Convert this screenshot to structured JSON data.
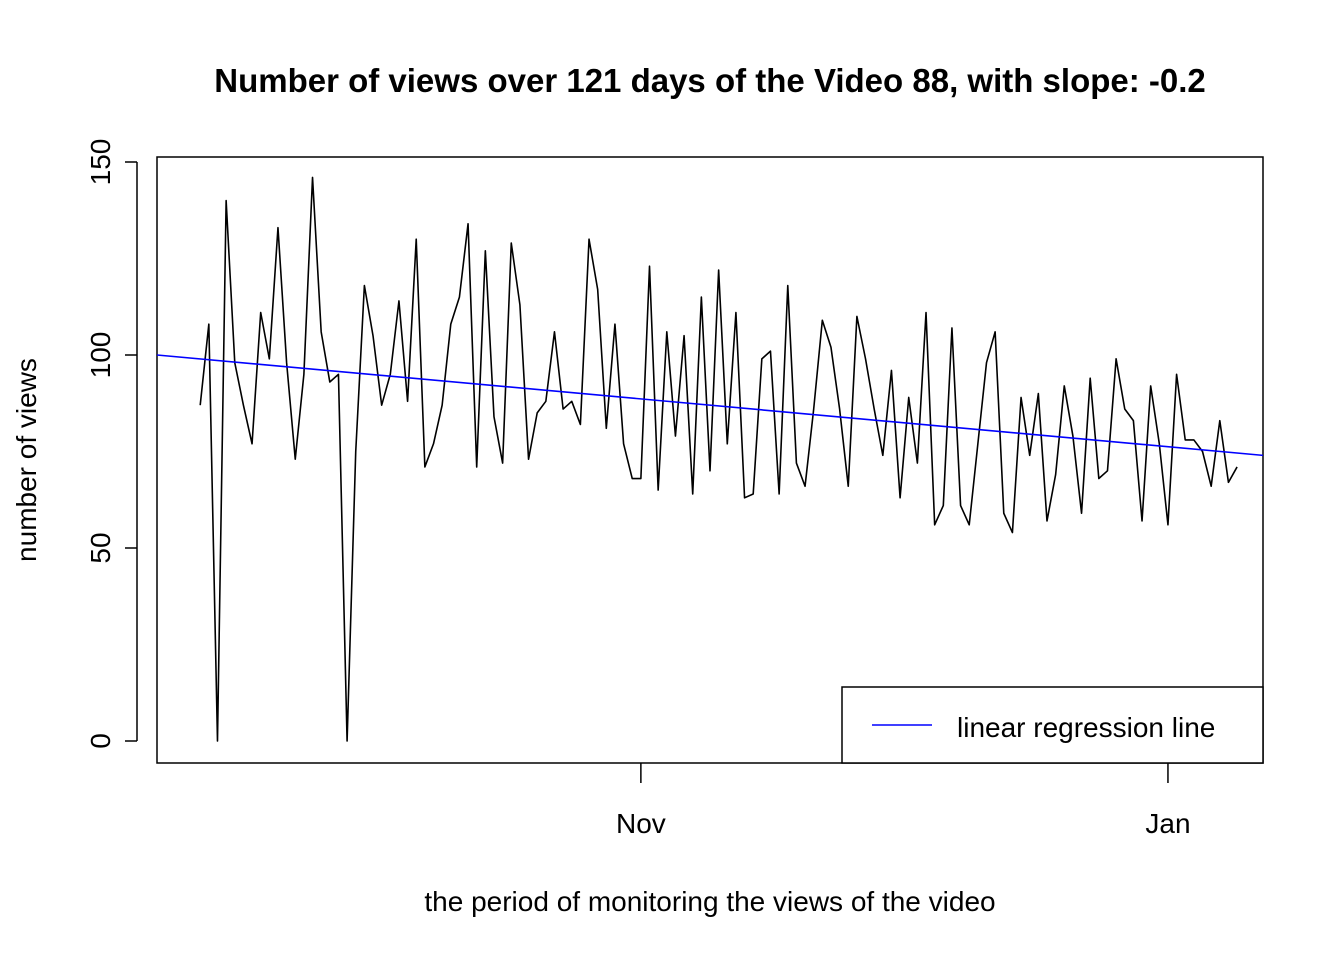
{
  "chart_data": {
    "type": "line",
    "title": "Number of views over 121 days of the Video 88, with slope:  -0.2",
    "xlabel": "the period of monitoring the views of the video",
    "ylabel": "number of views",
    "xlim": [
      "2023-09-06",
      "2024-01-12"
    ],
    "ylim": [
      0,
      150
    ],
    "x_ticks": [
      {
        "label": "Nov",
        "date": "2023-11-01"
      },
      {
        "label": "Jan",
        "date": "2024-01-01"
      }
    ],
    "y_ticks": [
      0,
      50,
      100,
      150
    ],
    "grid": false,
    "legend_position": "bottom-right",
    "x_start": "2023-09-11",
    "x_end": "2024-01-09",
    "series": [
      {
        "color": "#000000",
        "values": [
          87,
          108,
          0,
          140,
          98,
          87,
          77,
          111,
          99,
          133,
          98,
          73,
          95,
          146,
          106,
          93,
          95,
          0,
          75,
          118,
          105,
          87,
          95,
          114,
          88,
          130,
          71,
          77,
          87,
          108,
          115,
          134,
          71,
          127,
          84,
          72,
          129,
          113,
          73,
          85,
          88,
          106,
          86,
          88,
          82,
          130,
          117,
          81,
          108,
          77,
          68,
          68,
          123,
          65,
          106,
          79,
          105,
          64,
          115,
          70,
          122,
          77,
          111,
          63,
          64,
          99,
          101,
          64,
          118,
          72,
          66,
          86,
          109,
          102,
          86,
          66,
          110,
          99,
          86,
          74,
          96,
          63,
          89,
          72,
          111,
          56,
          61,
          107,
          61,
          56,
          77,
          98,
          106,
          59,
          54,
          89,
          74,
          90,
          57,
          69,
          92,
          79,
          59,
          94,
          68,
          70,
          99,
          86,
          83,
          57,
          92,
          77,
          56,
          95,
          78,
          78,
          75,
          66,
          83,
          67,
          71
        ]
      },
      {
        "name": "linear regression line",
        "color": "#0000ff",
        "type": "regression",
        "start": [
          "2023-09-06",
          100
        ],
        "end": [
          "2024-01-12",
          74
        ]
      }
    ]
  }
}
